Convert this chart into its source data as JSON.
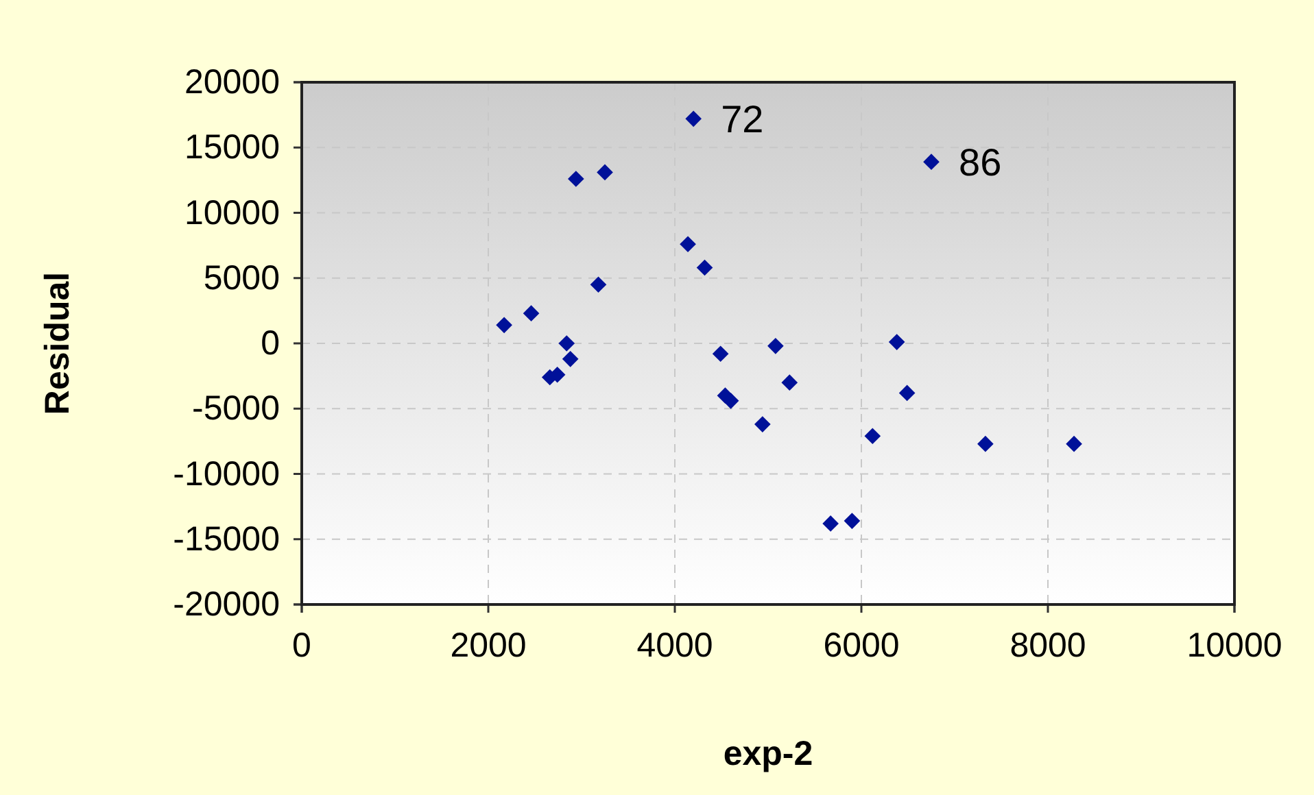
{
  "chart_data": {
    "type": "scatter",
    "xlabel": "exp-2",
    "ylabel": "Residual",
    "marker": "diamond",
    "grid": true,
    "xlim": [
      0,
      10000
    ],
    "xticks": [
      0,
      2000,
      4000,
      6000,
      8000,
      10000
    ],
    "ylim": [
      -20000,
      20000
    ],
    "yticks": [
      -20000,
      -15000,
      -10000,
      -5000,
      0,
      5000,
      10000,
      15000,
      20000
    ],
    "series": [
      {
        "color": "#001199",
        "x": [
          2170,
          2460,
          2840,
          2880,
          2660,
          2740,
          2940,
          3250,
          3180,
          4200,
          4140,
          4320,
          4490,
          4540,
          4600,
          5080,
          5230,
          4940,
          5670,
          5900,
          6120,
          6380,
          6490,
          6750,
          7330,
          8280
        ],
        "values": [
          1400,
          2300,
          0,
          -1200,
          -2600,
          -2400,
          12600,
          13100,
          4500,
          17200,
          7600,
          5800,
          -800,
          -4000,
          -4400,
          -200,
          -3000,
          -6200,
          -13800,
          -13600,
          -7100,
          100,
          -3800,
          13900,
          -7700,
          -7700
        ]
      }
    ],
    "annotations": [
      {
        "text": "72",
        "x": 4200,
        "y": 17200
      },
      {
        "text": "86",
        "x": 6750,
        "y": 13900
      }
    ]
  }
}
